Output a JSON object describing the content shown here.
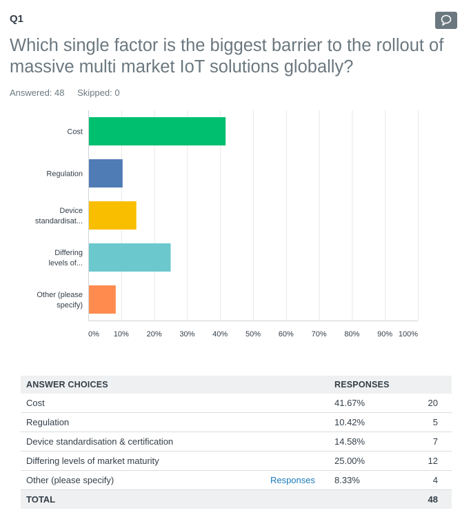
{
  "question": {
    "number": "Q1",
    "title": "Which single factor is the biggest barrier to the rollout of massive multi market IoT solutions globally?",
    "answered": "Answered: 48",
    "skipped": "Skipped: 0",
    "comment_icon": "speech-bubble-icon"
  },
  "chart_data": {
    "type": "bar",
    "orientation": "horizontal",
    "categories": [
      "Cost",
      "Regulation",
      "Device standardisat...",
      "Differing levels of...",
      "Other (please specify)"
    ],
    "category_lines": [
      [
        "Cost"
      ],
      [
        "Regulation"
      ],
      [
        "Device",
        "standardisat..."
      ],
      [
        "Differing",
        "levels of..."
      ],
      [
        "Other (please",
        "specify)"
      ]
    ],
    "values": [
      41.67,
      10.42,
      14.58,
      25.0,
      8.33
    ],
    "colors": [
      "#00bf6f",
      "#507cb6",
      "#f9be00",
      "#6bc8cd",
      "#ff8b4f"
    ],
    "xlim": [
      0,
      100
    ],
    "ticks": [
      "0%",
      "10%",
      "20%",
      "30%",
      "40%",
      "50%",
      "60%",
      "70%",
      "80%",
      "90%",
      "100%"
    ],
    "grid": true
  },
  "table": {
    "headers": {
      "choices": "ANSWER CHOICES",
      "responses": "RESPONSES"
    },
    "rows": [
      {
        "label": "Cost",
        "link": "",
        "percent": "41.67%",
        "count": "20"
      },
      {
        "label": "Regulation",
        "link": "",
        "percent": "10.42%",
        "count": "5"
      },
      {
        "label": "Device standardisation & certification",
        "link": "",
        "percent": "14.58%",
        "count": "7"
      },
      {
        "label": "Differing levels of market maturity",
        "link": "",
        "percent": "25.00%",
        "count": "12"
      },
      {
        "label": "Other (please specify)",
        "link": "Responses",
        "percent": "8.33%",
        "count": "4"
      }
    ],
    "total": {
      "label": "TOTAL",
      "count": "48"
    }
  }
}
